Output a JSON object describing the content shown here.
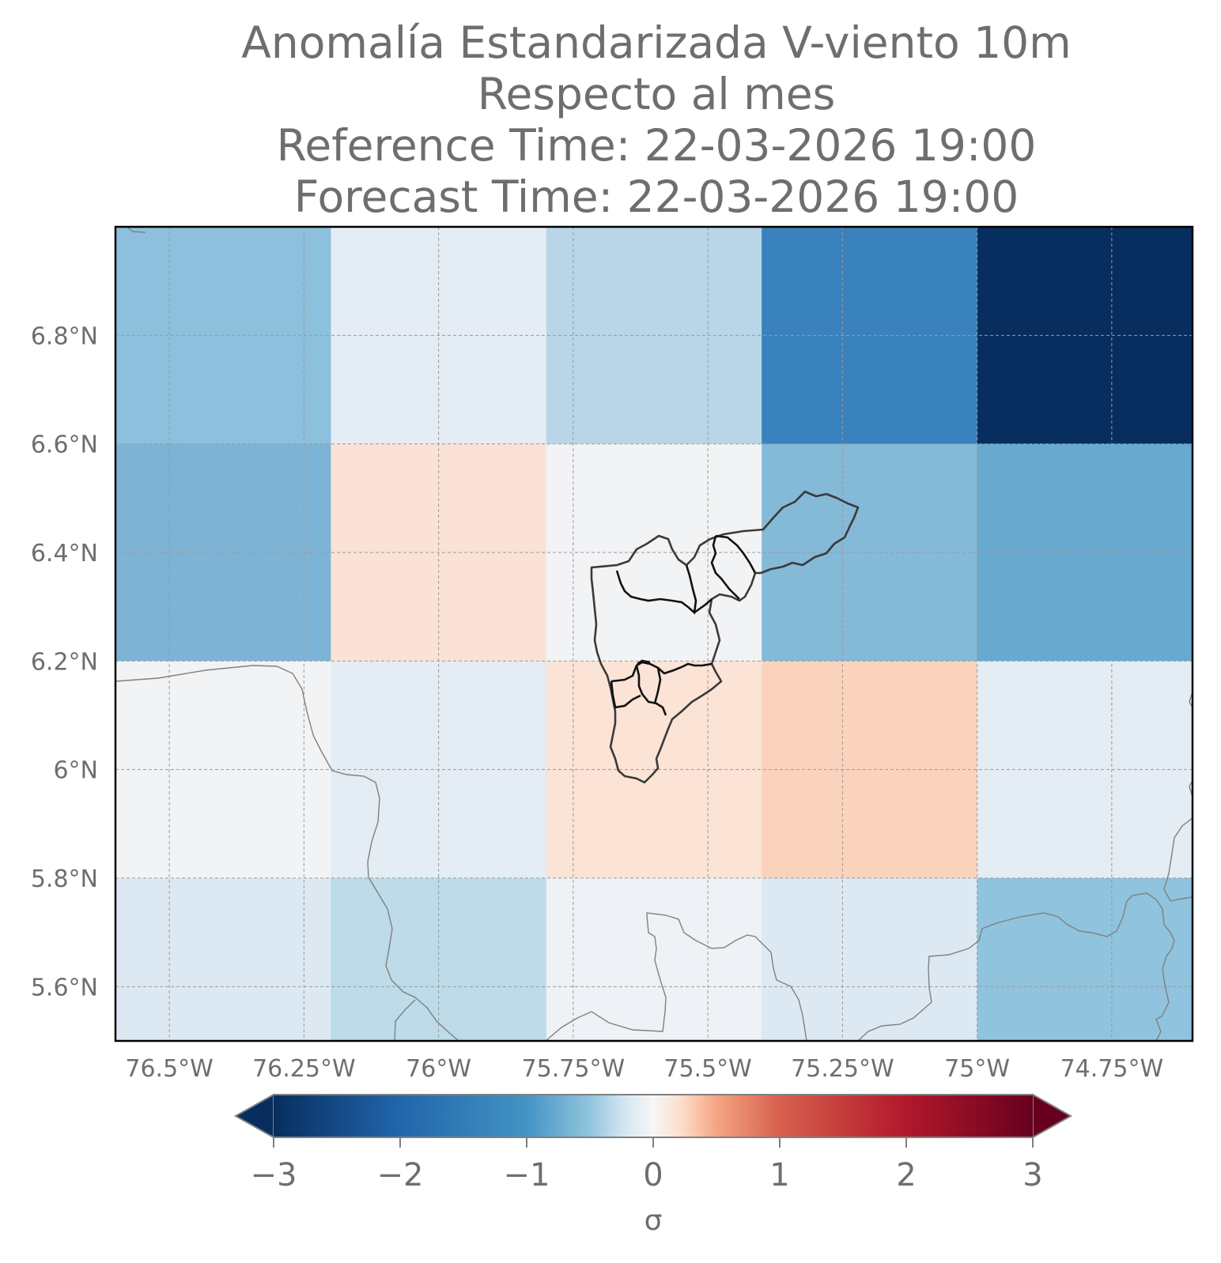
{
  "title": {
    "line1": "Anomalía Estandarizada V-viento 10m",
    "line2": "Respecto al mes",
    "line3": "Reference Time: 22-03-2026 19:00",
    "line4": "Forecast Time: 22-03-2026 19:00"
  },
  "map": {
    "lon_range": [
      -76.6,
      -74.6
    ],
    "lat_range": [
      5.5,
      7.0
    ],
    "lon_ticks": [
      -76.5,
      -76.25,
      -76.0,
      -75.75,
      -75.5,
      -75.25,
      -75.0,
      -74.75
    ],
    "lon_tick_labels": [
      "76.5°W",
      "76.25°W",
      "76°W",
      "75.75°W",
      "75.5°W",
      "75.25°W",
      "75°W",
      "74.75°W"
    ],
    "lat_ticks": [
      6.8,
      6.6,
      6.4,
      6.2,
      6.0,
      5.8,
      5.6
    ],
    "lat_tick_labels": [
      "6.8°N",
      "6.6°N",
      "6.4°N",
      "6.2°N",
      "6°N",
      "5.8°N",
      "5.6°N"
    ],
    "gridlines": true,
    "cell_colors": [
      [
        "#8cc0dc",
        "#e4ecf4",
        "#b8d6e8",
        "#3982bd",
        "#072e5e"
      ],
      [
        "#7db4d5",
        "#fbe2d6",
        "#f2f3f5",
        "#84b9d8",
        "#68a9d0"
      ],
      [
        "#f2f3f5",
        "#e4ecf4",
        "#fbe3d6",
        "#fbd3bd",
        "#e4ecf4"
      ],
      [
        "#dde9f2",
        "#bddbe8",
        "#eef1f5",
        "#dde9f2",
        "#90c3dd"
      ]
    ]
  },
  "colorbar": {
    "label": "σ",
    "ticks": [
      -3,
      -2,
      -1,
      0,
      1,
      2,
      3
    ],
    "tick_labels": [
      "−3",
      "−2",
      "−1",
      "0",
      "1",
      "2",
      "3"
    ],
    "colormap": "RdBu_r",
    "extend": "both"
  }
}
